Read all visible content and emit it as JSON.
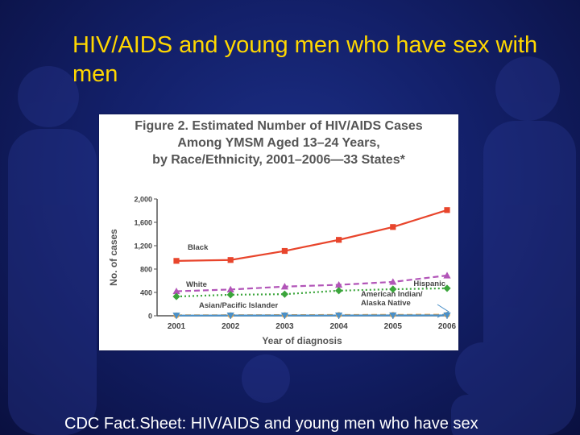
{
  "slide": {
    "title": "HIV/AIDS and young men who have sex with men",
    "footer": "CDC Fact.Sheet: HIV/AIDS and young men who have sex"
  },
  "colors": {
    "background": "#13206a",
    "title": "#ffd700",
    "footer": "#ffffff"
  },
  "chart_data": {
    "type": "line",
    "title_lines": [
      "Figure 2. Estimated Number of HIV/AIDS Cases",
      "Among YMSM Aged 13–24 Years,",
      "by Race/Ethnicity, 2001–2006—33 States*"
    ],
    "xlabel": "Year of diagnosis",
    "ylabel": "No. of cases",
    "x": [
      "2001",
      "2002",
      "2003",
      "2004",
      "2005",
      "2006"
    ],
    "ylim": [
      0,
      2000
    ],
    "yticks": [
      "0",
      "400",
      "800",
      "1,200",
      "1,600",
      "2,000"
    ],
    "grid": false,
    "series": [
      {
        "name": "Black",
        "color": "#e8452c",
        "dash": "solid",
        "marker": "square",
        "values": [
          940,
          955,
          1110,
          1300,
          1520,
          1810
        ]
      },
      {
        "name": "Hispanic",
        "color": "#b255b8",
        "dash": "dashed",
        "marker": "triangle",
        "values": [
          420,
          450,
          500,
          530,
          580,
          690
        ]
      },
      {
        "name": "White",
        "color": "#3ba53b",
        "dash": "dotted",
        "marker": "diamond",
        "values": [
          330,
          360,
          370,
          430,
          455,
          470
        ]
      },
      {
        "name": "Asian/Pacific Islander",
        "color": "#f2a23a",
        "dash": "dashed",
        "marker": "circle",
        "values": [
          8,
          10,
          12,
          14,
          16,
          18
        ]
      },
      {
        "name": "American Indian/ Alaska Native",
        "color": "#4a90c8",
        "dash": "solid",
        "marker": "triangle-down",
        "values": [
          4,
          5,
          5,
          6,
          7,
          8
        ]
      }
    ]
  }
}
